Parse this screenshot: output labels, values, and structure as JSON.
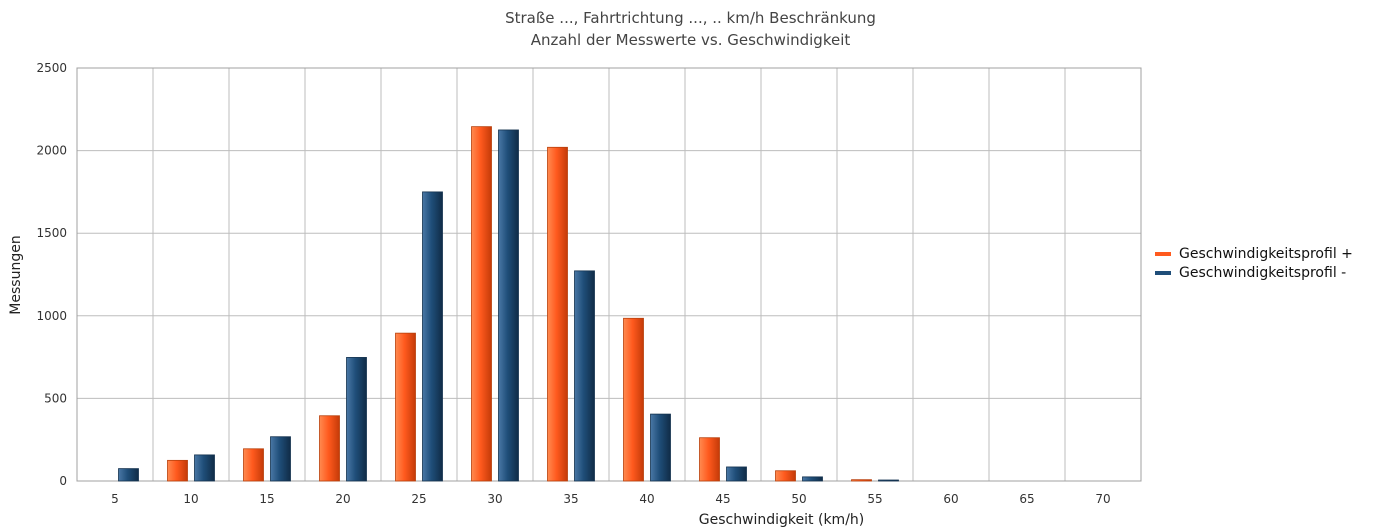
{
  "chart_data": {
    "type": "bar",
    "title": "Straße ..., Fahrtrichtung ..., .. km/h Beschränkung",
    "subtitle": "Anzahl der Messwerte vs. Geschwindigkeit",
    "xlabel": "Geschwindigkeit (km/h)",
    "ylabel": "Messungen",
    "ylim": [
      0,
      2500
    ],
    "yticks": [
      0,
      500,
      1000,
      1500,
      2000,
      2500
    ],
    "categories": [
      "5",
      "10",
      "15",
      "20",
      "25",
      "30",
      "35",
      "40",
      "45",
      "50",
      "55",
      "60",
      "65",
      "70"
    ],
    "series": [
      {
        "name": "Geschwindigkeitsprofil +",
        "color": "#ff5a1e",
        "values": [
          0,
          125,
          195,
          395,
          895,
          2145,
          2020,
          985,
          262,
          62,
          8,
          0,
          0,
          0
        ]
      },
      {
        "name": "Geschwindigkeitsprofil -",
        "color": "#1f4e79",
        "values": [
          75,
          158,
          268,
          748,
          1750,
          2125,
          1272,
          405,
          85,
          25,
          6,
          0,
          0,
          0
        ]
      }
    ],
    "grid": true,
    "legend_position": "right"
  }
}
